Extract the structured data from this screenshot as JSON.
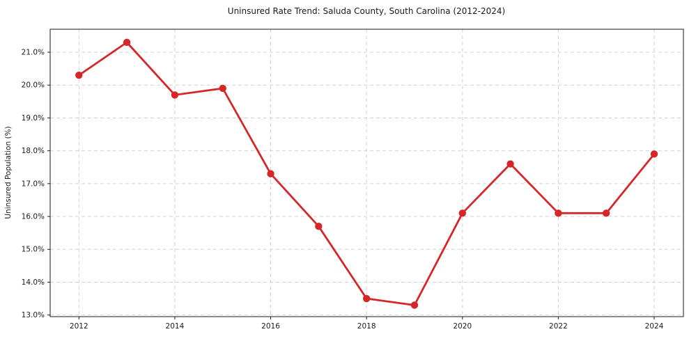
{
  "chart_data": {
    "type": "line",
    "title": "Uninsured Rate Trend: Saluda County, South Carolina (2012-2024)",
    "xlabel": "",
    "ylabel": "Uninsured Population (%)",
    "x": [
      2012,
      2013,
      2014,
      2015,
      2016,
      2017,
      2018,
      2019,
      2020,
      2021,
      2022,
      2023,
      2024
    ],
    "series": [
      {
        "values": [
          20.3,
          21.3,
          19.7,
          19.9,
          17.3,
          15.7,
          13.5,
          13.3,
          16.1,
          17.6,
          16.1,
          16.1,
          17.9
        ],
        "color": "#d62728",
        "marker": "circle"
      }
    ],
    "xticks": [
      2012,
      2014,
      2016,
      2018,
      2020,
      2022,
      2024
    ],
    "xtick_labels": [
      "2012",
      "2014",
      "2016",
      "2018",
      "2020",
      "2022",
      "2024"
    ],
    "yticks": [
      13,
      14,
      15,
      16,
      17,
      18,
      19,
      20,
      21
    ],
    "ytick_labels": [
      "13.0%",
      "14.0%",
      "15.0%",
      "16.0%",
      "17.0%",
      "18.0%",
      "19.0%",
      "20.0%",
      "21.0%"
    ],
    "xlim": [
      2011.4,
      2024.61
    ],
    "ylim": [
      12.95,
      21.7
    ],
    "grid": "dashed",
    "grid_color": "#d2d2d2",
    "spine_color": "#1a1a1a",
    "text_color": "#1a1a1a",
    "legend": "none",
    "background": "#ffffff"
  }
}
